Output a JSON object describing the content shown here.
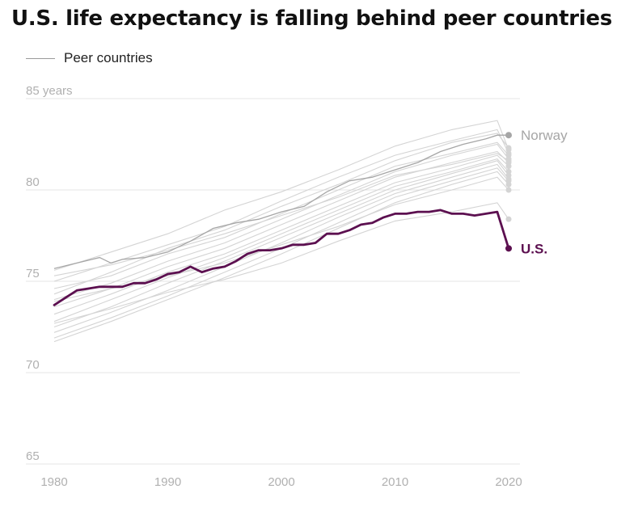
{
  "chart_data": {
    "type": "line",
    "title": "U.S. life expectancy is falling behind peer countries",
    "legend": [
      {
        "name": "Peer countries",
        "color": "#9a9a9a"
      }
    ],
    "y_unit_label": "85 years",
    "xlim": [
      1980,
      2020
    ],
    "ylim": [
      65,
      85
    ],
    "x_ticks": [
      1980,
      1990,
      2000,
      2010,
      2020
    ],
    "x_tick_labels": [
      "1980",
      "1990",
      "2000",
      "2010",
      "2020"
    ],
    "y_ticks": [
      65,
      70,
      75,
      80,
      85
    ],
    "y_tick_labels": [
      "65",
      "70",
      "75",
      "80",
      "85 years"
    ],
    "grid": "horizontal",
    "colors": {
      "us": "#5c1050",
      "norway": "#a6a6a6",
      "peer": "#d4d4d4",
      "grid": "#e6e6e6",
      "axis_text": "#b0b0b0"
    },
    "series": [
      {
        "name": "U.S.",
        "label": "U.S.",
        "highlight": true,
        "color": "#5c1050",
        "points": [
          [
            1980,
            73.7
          ],
          [
            1981,
            74.1
          ],
          [
            1982,
            74.5
          ],
          [
            1983,
            74.6
          ],
          [
            1984,
            74.7
          ],
          [
            1985,
            74.7
          ],
          [
            1986,
            74.7
          ],
          [
            1987,
            74.9
          ],
          [
            1988,
            74.9
          ],
          [
            1989,
            75.1
          ],
          [
            1990,
            75.4
          ],
          [
            1991,
            75.5
          ],
          [
            1992,
            75.8
          ],
          [
            1993,
            75.5
          ],
          [
            1994,
            75.7
          ],
          [
            1995,
            75.8
          ],
          [
            1996,
            76.1
          ],
          [
            1997,
            76.5
          ],
          [
            1998,
            76.7
          ],
          [
            1999,
            76.7
          ],
          [
            2000,
            76.8
          ],
          [
            2001,
            77.0
          ],
          [
            2002,
            77.0
          ],
          [
            2003,
            77.1
          ],
          [
            2004,
            77.6
          ],
          [
            2005,
            77.6
          ],
          [
            2006,
            77.8
          ],
          [
            2007,
            78.1
          ],
          [
            2008,
            78.2
          ],
          [
            2009,
            78.5
          ],
          [
            2010,
            78.7
          ],
          [
            2011,
            78.7
          ],
          [
            2012,
            78.8
          ],
          [
            2013,
            78.8
          ],
          [
            2014,
            78.9
          ],
          [
            2015,
            78.7
          ],
          [
            2016,
            78.7
          ],
          [
            2017,
            78.6
          ],
          [
            2018,
            78.7
          ],
          [
            2019,
            78.8
          ],
          [
            2020,
            76.8
          ]
        ]
      },
      {
        "name": "Norway",
        "label": "Norway",
        "highlight": true,
        "color": "#a6a6a6",
        "points": [
          [
            1980,
            75.7
          ],
          [
            1982,
            76.0
          ],
          [
            1984,
            76.3
          ],
          [
            1985,
            76.0
          ],
          [
            1986,
            76.2
          ],
          [
            1988,
            76.3
          ],
          [
            1990,
            76.6
          ],
          [
            1992,
            77.2
          ],
          [
            1994,
            77.9
          ],
          [
            1996,
            78.2
          ],
          [
            1998,
            78.4
          ],
          [
            2000,
            78.8
          ],
          [
            2002,
            79.1
          ],
          [
            2004,
            79.9
          ],
          [
            2006,
            80.5
          ],
          [
            2008,
            80.7
          ],
          [
            2010,
            81.1
          ],
          [
            2012,
            81.5
          ],
          [
            2014,
            82.1
          ],
          [
            2016,
            82.5
          ],
          [
            2018,
            82.8
          ],
          [
            2019,
            83.0
          ],
          [
            2020,
            83.0
          ]
        ]
      },
      {
        "name": "Peer country 1",
        "points": [
          [
            1980,
            75.6
          ],
          [
            1985,
            76.6
          ],
          [
            1990,
            77.6
          ],
          [
            1995,
            78.9
          ],
          [
            2000,
            79.9
          ],
          [
            2005,
            81.1
          ],
          [
            2010,
            82.4
          ],
          [
            2015,
            83.3
          ],
          [
            2019,
            83.8
          ],
          [
            2020,
            82.2
          ]
        ]
      },
      {
        "name": "Peer country 2",
        "points": [
          [
            1980,
            75.0
          ],
          [
            1985,
            76.0
          ],
          [
            1990,
            77.0
          ],
          [
            1995,
            78.0
          ],
          [
            2000,
            79.4
          ],
          [
            2005,
            80.7
          ],
          [
            2010,
            81.9
          ],
          [
            2015,
            82.7
          ],
          [
            2019,
            83.3
          ],
          [
            2020,
            82.0
          ]
        ]
      },
      {
        "name": "Peer country 3",
        "points": [
          [
            1980,
            74.3
          ],
          [
            1985,
            75.5
          ],
          [
            1990,
            76.8
          ],
          [
            1995,
            77.8
          ],
          [
            2000,
            79.1
          ],
          [
            2005,
            80.3
          ],
          [
            2010,
            81.6
          ],
          [
            2015,
            82.6
          ],
          [
            2019,
            83.1
          ],
          [
            2020,
            82.3
          ]
        ]
      },
      {
        "name": "Peer country 4",
        "points": [
          [
            1980,
            74.6
          ],
          [
            1985,
            75.3
          ],
          [
            1990,
            76.5
          ],
          [
            1995,
            77.4
          ],
          [
            2000,
            78.7
          ],
          [
            2005,
            80.0
          ],
          [
            2010,
            81.3
          ],
          [
            2015,
            82.0
          ],
          [
            2019,
            82.6
          ],
          [
            2020,
            81.9
          ]
        ]
      },
      {
        "name": "Peer country 5",
        "points": [
          [
            1980,
            74.0
          ],
          [
            1985,
            74.9
          ],
          [
            1990,
            76.1
          ],
          [
            1995,
            77.1
          ],
          [
            2000,
            78.4
          ],
          [
            2005,
            79.7
          ],
          [
            2010,
            81.0
          ],
          [
            2015,
            81.9
          ],
          [
            2019,
            82.5
          ],
          [
            2020,
            81.7
          ]
        ]
      },
      {
        "name": "Peer country 6",
        "points": [
          [
            1980,
            73.6
          ],
          [
            1985,
            74.6
          ],
          [
            1990,
            75.8
          ],
          [
            1995,
            76.8
          ],
          [
            2000,
            78.1
          ],
          [
            2005,
            79.4
          ],
          [
            2010,
            80.7
          ],
          [
            2015,
            81.5
          ],
          [
            2019,
            82.1
          ],
          [
            2020,
            81.5
          ]
        ]
      },
      {
        "name": "Peer country 7",
        "points": [
          [
            1980,
            73.2
          ],
          [
            1985,
            74.3
          ],
          [
            1990,
            75.5
          ],
          [
            1995,
            76.5
          ],
          [
            2000,
            77.8
          ],
          [
            2005,
            79.1
          ],
          [
            2010,
            80.4
          ],
          [
            2015,
            81.2
          ],
          [
            2019,
            81.9
          ],
          [
            2020,
            81.3
          ]
        ]
      },
      {
        "name": "Peer country 8",
        "points": [
          [
            1980,
            72.8
          ],
          [
            1985,
            74.0
          ],
          [
            1990,
            75.2
          ],
          [
            1995,
            76.3
          ],
          [
            2000,
            77.6
          ],
          [
            2005,
            78.9
          ],
          [
            2010,
            80.2
          ],
          [
            2015,
            81.0
          ],
          [
            2019,
            81.7
          ],
          [
            2020,
            81.0
          ]
        ]
      },
      {
        "name": "Peer country 9",
        "points": [
          [
            1980,
            72.5
          ],
          [
            1985,
            73.6
          ],
          [
            1990,
            74.9
          ],
          [
            1995,
            76.1
          ],
          [
            2000,
            77.4
          ],
          [
            2005,
            78.7
          ],
          [
            2010,
            80.0
          ],
          [
            2015,
            80.9
          ],
          [
            2019,
            81.6
          ],
          [
            2020,
            80.8
          ]
        ]
      },
      {
        "name": "Peer country 10",
        "points": [
          [
            1980,
            72.2
          ],
          [
            1985,
            73.3
          ],
          [
            1990,
            74.5
          ],
          [
            1995,
            75.8
          ],
          [
            2000,
            77.1
          ],
          [
            2005,
            78.5
          ],
          [
            2010,
            79.8
          ],
          [
            2015,
            80.7
          ],
          [
            2019,
            81.4
          ],
          [
            2020,
            80.6
          ]
        ]
      },
      {
        "name": "Peer country 11",
        "points": [
          [
            1980,
            71.9
          ],
          [
            1985,
            73.0
          ],
          [
            1990,
            74.2
          ],
          [
            1995,
            75.5
          ],
          [
            2000,
            76.8
          ],
          [
            2005,
            78.2
          ],
          [
            2010,
            79.6
          ],
          [
            2015,
            80.5
          ],
          [
            2019,
            81.2
          ],
          [
            2020,
            80.5
          ]
        ]
      },
      {
        "name": "Peer country 12",
        "points": [
          [
            1980,
            71.7
          ],
          [
            1985,
            72.8
          ],
          [
            1990,
            74.0
          ],
          [
            1995,
            75.2
          ],
          [
            2000,
            76.5
          ],
          [
            2005,
            77.9
          ],
          [
            2010,
            79.3
          ],
          [
            2015,
            80.3
          ],
          [
            2019,
            81.0
          ],
          [
            2020,
            80.3
          ]
        ]
      },
      {
        "name": "Peer country 13",
        "points": [
          [
            1980,
            73.9
          ],
          [
            1985,
            74.6
          ],
          [
            1990,
            75.3
          ],
          [
            1995,
            76.0
          ],
          [
            2000,
            77.0
          ],
          [
            2005,
            78.0
          ],
          [
            2010,
            79.2
          ],
          [
            2015,
            80.0
          ],
          [
            2019,
            80.7
          ],
          [
            2020,
            80.0
          ]
        ]
      },
      {
        "name": "Peer country 14",
        "points": [
          [
            1980,
            72.7
          ],
          [
            1985,
            73.5
          ],
          [
            1990,
            74.4
          ],
          [
            1995,
            75.1
          ],
          [
            2000,
            76.0
          ],
          [
            2005,
            77.2
          ],
          [
            2010,
            78.3
          ],
          [
            2015,
            78.8
          ],
          [
            2019,
            79.3
          ],
          [
            2020,
            78.4
          ]
        ]
      },
      {
        "name": "Peer country 15",
        "points": [
          [
            1980,
            75.3
          ],
          [
            1985,
            75.9
          ],
          [
            1990,
            76.7
          ],
          [
            1995,
            77.6
          ],
          [
            2000,
            78.6
          ],
          [
            2005,
            79.6
          ],
          [
            2010,
            80.8
          ],
          [
            2015,
            81.4
          ],
          [
            2019,
            82.0
          ],
          [
            2020,
            81.6
          ]
        ]
      }
    ]
  }
}
